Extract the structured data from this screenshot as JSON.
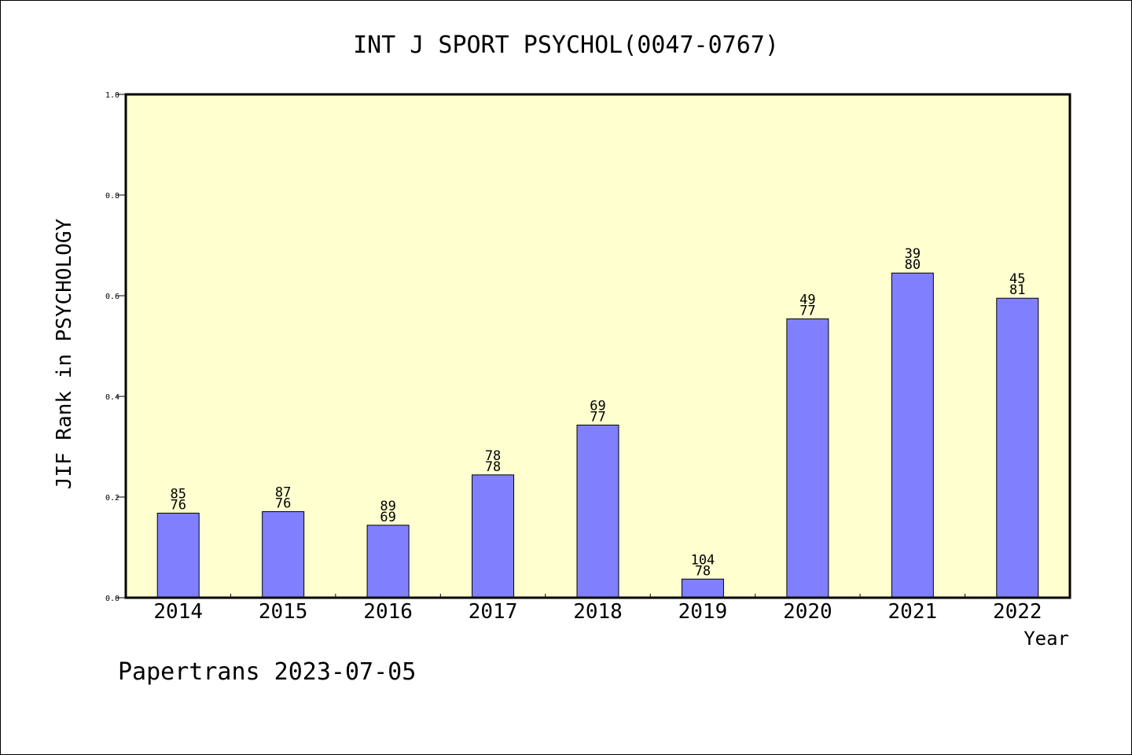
{
  "chart_data": {
    "type": "bar",
    "title": "INT J SPORT PSYCHOL(0047-0767)",
    "xlabel": "Year",
    "ylabel": "JIF Rank in PSYCHOLOGY",
    "ylim": [
      0,
      1.0
    ],
    "yticks": [
      "0.0",
      "0.2",
      "0.4",
      "0.6",
      "0.8",
      "1.0"
    ],
    "grid": false,
    "categories": [
      "2014",
      "2015",
      "2016",
      "2017",
      "2018",
      "2019",
      "2020",
      "2021",
      "2022"
    ],
    "values": [
      0.168,
      0.171,
      0.144,
      0.244,
      0.343,
      0.037,
      0.554,
      0.645,
      0.595
    ],
    "labels_top": [
      "85",
      "87",
      "89",
      "78",
      "69",
      "104",
      "49",
      "39",
      "45"
    ],
    "labels_bottom": [
      "76",
      "76",
      "69",
      "78",
      "77",
      "78",
      "77",
      "80",
      "81"
    ]
  },
  "footer": {
    "text": "Papertrans 2023-07-05"
  },
  "colors": {
    "plot_bg": "#ffffd0",
    "bar": "#8080ff"
  }
}
